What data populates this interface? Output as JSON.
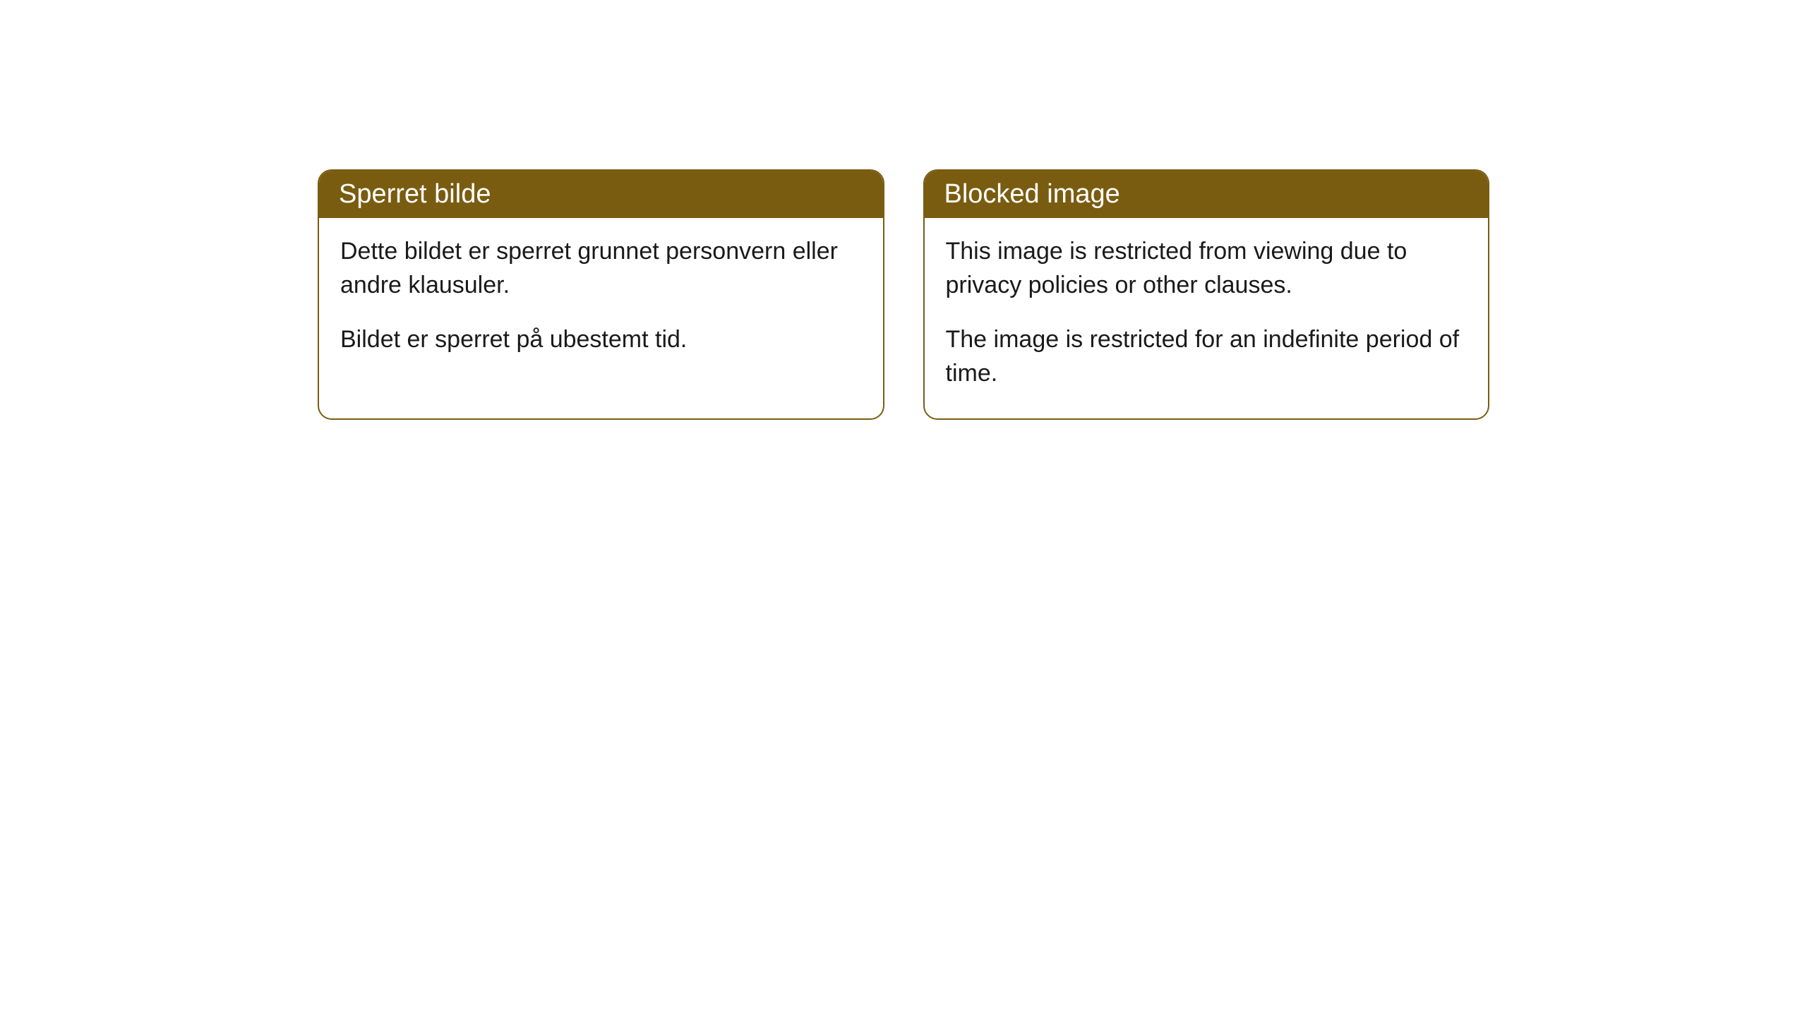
{
  "cards": [
    {
      "title": "Sperret bilde",
      "paragraph1": "Dette bildet er sperret grunnet personvern eller andre klausuler.",
      "paragraph2": "Bildet er sperret på ubestemt tid."
    },
    {
      "title": "Blocked image",
      "paragraph1": "This image is restricted from viewing due to privacy policies or other clauses.",
      "paragraph2": "The image is restricted for an indefinite period of time."
    }
  ],
  "styling": {
    "header_background": "#7a5c11",
    "header_text_color": "#ffffff",
    "border_color": "#7a5c11",
    "body_text_color": "#1a1a1a",
    "card_background": "#ffffff",
    "page_background": "#ffffff",
    "border_radius": 20,
    "header_fontsize": 38,
    "body_fontsize": 34
  }
}
